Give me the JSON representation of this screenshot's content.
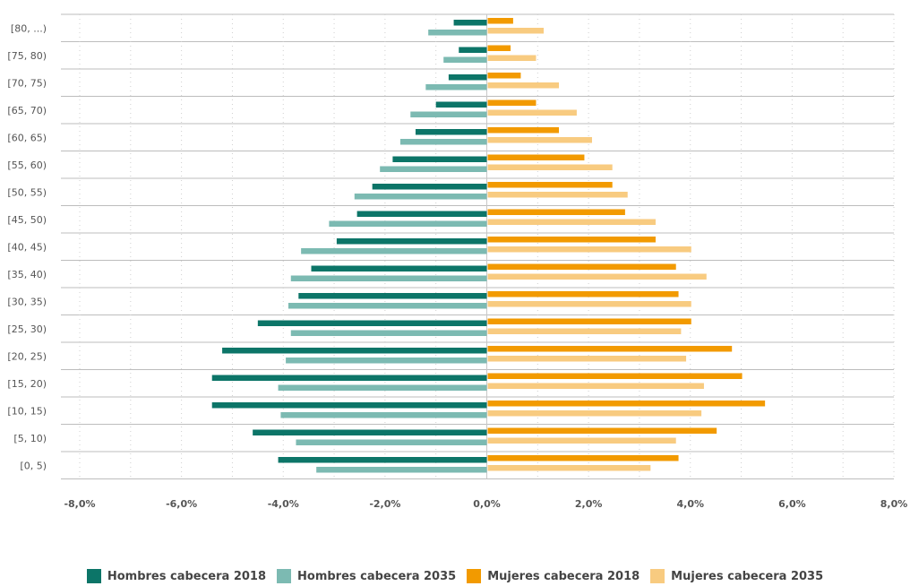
{
  "chart_data": {
    "type": "bar",
    "orientation": "horizontal",
    "categories": [
      "[0, 5)",
      "[5, 10)",
      "[10, 15)",
      "[15, 20)",
      "[20, 25)",
      "[25, 30)",
      "[30, 35)",
      "[35, 40)",
      "[40, 45)",
      "[45, 50)",
      "[50, 55)",
      "[55, 60)",
      "[60, 65)",
      "[65, 70)",
      "[70, 75)",
      "[75, 80)",
      "[80, ...)"
    ],
    "series": [
      {
        "name": "Hombres cabecera 2018",
        "color": "#0c7568",
        "values": [
          -4.1,
          -4.6,
          -5.4,
          -5.4,
          -5.2,
          -4.5,
          -3.7,
          -3.45,
          -2.95,
          -2.55,
          -2.25,
          -1.85,
          -1.4,
          -1.0,
          -0.75,
          -0.55,
          -0.65
        ]
      },
      {
        "name": "Hombres cabecera 2035",
        "color": "#7cbab2",
        "values": [
          -3.35,
          -3.75,
          -4.05,
          -4.1,
          -3.95,
          -3.85,
          -3.9,
          -3.85,
          -3.65,
          -3.1,
          -2.6,
          -2.1,
          -1.7,
          -1.5,
          -1.2,
          -0.85,
          -1.15
        ]
      },
      {
        "name": "Mujeres cabecera 2018",
        "color": "#f29a00",
        "values": [
          3.75,
          4.5,
          5.45,
          5.0,
          4.8,
          4.0,
          3.75,
          3.7,
          3.3,
          2.7,
          2.45,
          1.9,
          1.4,
          0.95,
          0.65,
          0.45,
          0.5
        ]
      },
      {
        "name": "Mujeres cabecera 2035",
        "color": "#f8cb80",
        "values": [
          3.2,
          3.7,
          4.2,
          4.25,
          3.9,
          3.8,
          4.0,
          4.3,
          4.0,
          3.3,
          2.75,
          2.45,
          2.05,
          1.75,
          1.4,
          0.95,
          1.1
        ]
      }
    ],
    "xlim": [
      -8,
      8
    ],
    "xticks": [
      "-8,0%",
      "-6,0%",
      "-4,0%",
      "-2,0%",
      "0,0%",
      "2,0%",
      "4,0%",
      "6,0%",
      "8,0%"
    ],
    "xlabel": "",
    "ylabel": "",
    "title": "",
    "grid": true,
    "legend_position": "bottom"
  },
  "legend": {
    "items": [
      {
        "label": "Hombres cabecera 2018",
        "color": "#0c7568"
      },
      {
        "label": "Hombres cabecera 2035",
        "color": "#7cbab2"
      },
      {
        "label": "Mujeres cabecera 2018",
        "color": "#f29a00"
      },
      {
        "label": "Mujeres cabecera 2035",
        "color": "#f8cb80"
      }
    ]
  }
}
